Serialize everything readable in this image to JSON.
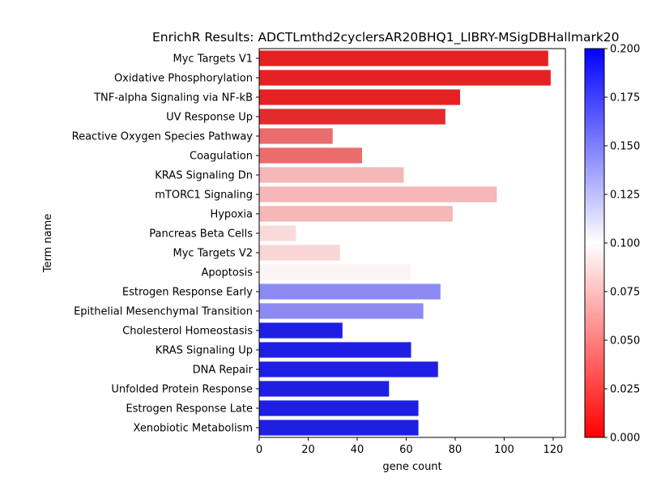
{
  "chart_data": {
    "type": "bar",
    "orientation": "horizontal",
    "title": "EnrichR Results: ADCTLmthd2cyclersAR20BHQ1_LIBRY-MSigDBHallmark20",
    "xlabel": "gene count",
    "ylabel": "Term name",
    "xlim": [
      0,
      125
    ],
    "xticks": [
      0,
      20,
      40,
      60,
      80,
      100,
      120
    ],
    "grid": false,
    "categories": [
      "Myc Targets V1",
      "Oxidative Phosphorylation",
      "TNF-alpha Signaling via NF-kB",
      "UV Response Up",
      "Reactive Oxygen Species Pathway",
      "Coagulation",
      "KRAS Signaling Dn",
      "mTORC1 Signaling",
      "Hypoxia",
      "Pancreas Beta Cells",
      "Myc Targets V2",
      "Apoptosis",
      "Estrogen Response Early",
      "Epithelial Mesenchymal Transition",
      "Cholesterol Homeostasis",
      "KRAS Signaling Up",
      "DNA Repair",
      "Unfolded Protein Response",
      "Estrogen Response Late",
      "Xenobiotic Metabolism"
    ],
    "values": [
      118,
      119,
      82,
      76,
      30,
      42,
      59,
      97,
      79,
      15,
      33,
      62,
      74,
      67,
      34,
      62,
      73,
      53,
      65,
      65
    ],
    "bar_colors": [
      "#e52222",
      "#e52222",
      "#e52222",
      "#e22c2c",
      "#ea6c6c",
      "#ea6c6c",
      "#f5b7b7",
      "#f5b7b7",
      "#f5b7b7",
      "#f9dada",
      "#f8d6d6",
      "#fdf5f5",
      "#8b8bf1",
      "#8b8bf1",
      "#1f1fe3",
      "#1f1fe3",
      "#1f1fe3",
      "#1f1fe3",
      "#1f1fe3",
      "#1f1fe3"
    ],
    "colorbar": {
      "range": [
        0,
        0.2
      ],
      "ticks": [
        "0.000",
        "0.025",
        "0.050",
        "0.075",
        "0.100",
        "0.125",
        "0.150",
        "0.175",
        "0.200"
      ],
      "colors": [
        "#ff0000",
        "#ffffff",
        "#0000ff"
      ]
    }
  }
}
